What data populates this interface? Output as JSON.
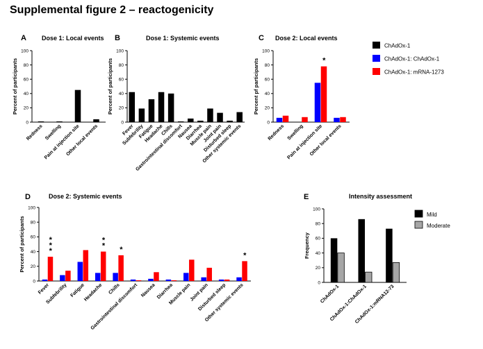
{
  "title": "Supplemental figure 2 – reactogenicity",
  "legend": {
    "entries": [
      {
        "name": "ChAdOx-1",
        "color": "#000000"
      },
      {
        "name": "ChAdOx-1: ChAdOx-1",
        "color": "#0000ff"
      },
      {
        "name": "ChAdOx-1: mRNA-1273",
        "color": "#ff0000"
      }
    ]
  },
  "chart_data": [
    {
      "id": "A",
      "panel_label": "A",
      "type": "bar",
      "title": "Dose 1: Local events",
      "ylabel": "Percent of participants",
      "xlabel": "",
      "ylim": [
        0,
        100
      ],
      "yticks": [
        0,
        20,
        40,
        60,
        80,
        100
      ],
      "categories": [
        "Redness",
        "Swelling",
        "Pain at injection site",
        "Other local events"
      ],
      "series": [
        {
          "color": "#000000",
          "values": [
            1,
            1,
            45,
            4
          ]
        }
      ],
      "annotations": []
    },
    {
      "id": "B",
      "panel_label": "B",
      "type": "bar",
      "title": "Dose 1: Systemic events",
      "ylabel": "Percent of participants",
      "xlabel": "",
      "ylim": [
        0,
        100
      ],
      "yticks": [
        0,
        20,
        40,
        60,
        80,
        100
      ],
      "categories": [
        "Fever",
        "Subfebrility",
        "Fatigue",
        "Headache",
        "Chills",
        "Gastrointestinal discomfort",
        "Nausea",
        "Diarrhea",
        "Muscle pain",
        "Joint pain",
        "Disturbed sleep",
        "Other systemic events"
      ],
      "series": [
        {
          "color": "#000000",
          "values": [
            42,
            19,
            32,
            42,
            40,
            1,
            5,
            2,
            19,
            13,
            2,
            14
          ]
        }
      ],
      "annotations": []
    },
    {
      "id": "C",
      "panel_label": "C",
      "type": "bar",
      "title": "Dose 2: Local events",
      "ylabel": "Percent pf participants",
      "xlabel": "",
      "ylim": [
        0,
        100
      ],
      "yticks": [
        0,
        20,
        40,
        60,
        80,
        100
      ],
      "categories": [
        "Redness",
        "Swelling",
        "Pain at injection site",
        "Other local events"
      ],
      "series": [
        {
          "name": "ChAdOx-1: ChAdOx-1",
          "color": "#0000ff",
          "values": [
            6,
            0,
            55,
            6
          ]
        },
        {
          "name": "ChAdOx-1: mRNA-1273",
          "color": "#ff0000",
          "values": [
            9,
            7,
            78,
            7
          ]
        }
      ],
      "annotations": [
        {
          "category": 2,
          "text": "*"
        }
      ]
    },
    {
      "id": "D",
      "panel_label": "D",
      "type": "bar",
      "title": "Dose 2: Systemic events",
      "ylabel": "Percent of participants",
      "xlabel": "",
      "ylim": [
        0,
        100
      ],
      "yticks": [
        0,
        20,
        40,
        60,
        80,
        100
      ],
      "categories": [
        "Fever",
        "Subfebrility",
        "Fatigue",
        "Headache",
        "Chills",
        "Gastrointestinal discomfort",
        "Nausea",
        "Diarrhea",
        "Muscle pain",
        "Joint pain",
        "Disturbed sleep",
        "Other systemic events"
      ],
      "series": [
        {
          "name": "ChAdOx-1: ChAdOx-1",
          "color": "#0000ff",
          "values": [
            2,
            8,
            26,
            11,
            11,
            2,
            3,
            2,
            11,
            5,
            2,
            5
          ]
        },
        {
          "name": "ChAdOx-1: mRNA-1273",
          "color": "#ff0000",
          "values": [
            33,
            14,
            42,
            40,
            35,
            1,
            12,
            1,
            29,
            18,
            2,
            27
          ]
        }
      ],
      "annotations": [
        {
          "category": 0,
          "text": "*\n*\n*"
        },
        {
          "category": 3,
          "text": "*\n*"
        },
        {
          "category": 4,
          "text": "*"
        },
        {
          "category": 11,
          "text": "*"
        }
      ]
    },
    {
      "id": "E",
      "panel_label": "E",
      "type": "bar",
      "title": "Intensity assessment",
      "ylabel": "Frequency",
      "xlabel": "",
      "ylim": [
        0,
        100
      ],
      "yticks": [
        0,
        20,
        40,
        60,
        80,
        100
      ],
      "categories": [
        "ChAdOx-1",
        "ChAdOx-1:ChAdOx-1",
        "ChAdOx-1:mRNA12-73"
      ],
      "series": [
        {
          "name": "Mild",
          "color": "#000000",
          "values": [
            60,
            86,
            73
          ]
        },
        {
          "name": "Moderate",
          "color": "#a6a6a6",
          "values": [
            40,
            14,
            27
          ]
        }
      ],
      "legend": [
        "Mild",
        "Moderate"
      ],
      "annotations": []
    }
  ]
}
